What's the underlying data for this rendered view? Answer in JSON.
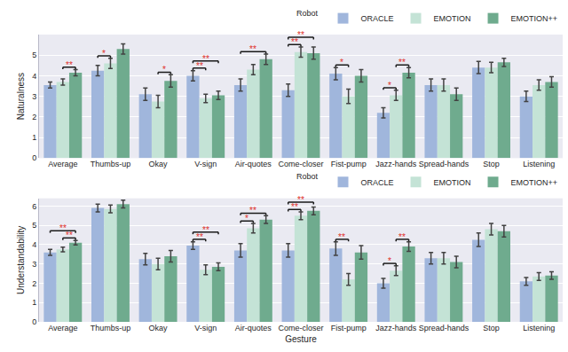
{
  "chart_data": [
    {
      "type": "bar",
      "y_label": "Naturalness",
      "categories": [
        "Average",
        "Thumbs-up",
        "Okay",
        "V-sign",
        "Air-quotes",
        "Come-closer",
        "Fist-pump",
        "Jazz-hands",
        "Spread-hands",
        "Stop",
        "Listening"
      ],
      "series": [
        {
          "name": "ORACLE",
          "color": "#a0b6dc",
          "values": [
            3.55,
            4.25,
            3.1,
            4.0,
            3.55,
            3.3,
            4.1,
            2.2,
            3.55,
            4.4,
            3.0
          ],
          "error": [
            0.15,
            0.25,
            0.3,
            0.25,
            0.3,
            0.3,
            0.3,
            0.25,
            0.3,
            0.3,
            0.25
          ]
        },
        {
          "name": "EMOTION",
          "color": "#c4e3d6",
          "values": [
            3.7,
            4.6,
            2.75,
            2.9,
            4.3,
            5.15,
            3.0,
            3.05,
            3.55,
            4.4,
            3.55
          ],
          "error": [
            0.15,
            0.25,
            0.3,
            0.2,
            0.25,
            0.25,
            0.35,
            0.25,
            0.3,
            0.25,
            0.25
          ]
        },
        {
          "name": "EMOTION++",
          "color": "#6fab8e",
          "values": [
            4.15,
            5.3,
            3.75,
            3.05,
            4.8,
            5.1,
            4.0,
            4.15,
            3.1,
            4.65,
            3.7
          ],
          "error": [
            0.15,
            0.25,
            0.3,
            0.2,
            0.25,
            0.3,
            0.3,
            0.25,
            0.3,
            0.2,
            0.25
          ]
        }
      ],
      "ylim": [
        0,
        6.0
      ],
      "yticks": [
        0,
        1,
        2,
        3,
        4,
        5
      ],
      "grid": true,
      "legend": "top right",
      "legend_title": "Robot",
      "annotations": [
        {
          "category": "Average",
          "from": "EMOTION",
          "to": "EMOTION++",
          "text": "**"
        },
        {
          "category": "Thumbs-up",
          "from": "ORACLE",
          "to": "EMOTION",
          "text": "*"
        },
        {
          "category": "Okay",
          "from": "EMOTION",
          "to": "EMOTION++",
          "text": "*"
        },
        {
          "category": "V-sign",
          "from": "ORACLE",
          "to": "EMOTION",
          "text": "**"
        },
        {
          "category": "V-sign",
          "from": "ORACLE",
          "to": "EMOTION++",
          "text": "**"
        },
        {
          "category": "Air-quotes",
          "from": "ORACLE",
          "to": "EMOTION++",
          "text": "**"
        },
        {
          "category": "Come-closer",
          "from": "ORACLE",
          "to": "EMOTION",
          "text": "**"
        },
        {
          "category": "Come-closer",
          "from": "ORACLE",
          "to": "EMOTION++",
          "text": "**"
        },
        {
          "category": "Fist-pump",
          "from": "ORACLE",
          "to": "EMOTION",
          "text": "*"
        },
        {
          "category": "Jazz-hands",
          "from": "ORACLE",
          "to": "EMOTION",
          "text": "*"
        },
        {
          "category": "Jazz-hands",
          "from": "EMOTION",
          "to": "EMOTION++",
          "text": "**"
        }
      ]
    },
    {
      "type": "bar",
      "y_label": "Understandability",
      "x_label": "Gesture",
      "categories": [
        "Average",
        "Thumbs-up",
        "Okay",
        "V-sign",
        "Air-quotes",
        "Come-closer",
        "Fist-pump",
        "Jazz-hands",
        "Spread-hands",
        "Stop",
        "Listening"
      ],
      "series": [
        {
          "name": "ORACLE",
          "color": "#a0b6dc",
          "values": [
            3.6,
            5.9,
            3.25,
            3.95,
            3.7,
            3.7,
            3.8,
            2.0,
            3.3,
            4.25,
            2.1
          ],
          "error": [
            0.15,
            0.2,
            0.3,
            0.2,
            0.35,
            0.35,
            0.35,
            0.25,
            0.3,
            0.35,
            0.2
          ]
        },
        {
          "name": "EMOTION",
          "color": "#c4e3d6",
          "values": [
            3.75,
            5.85,
            3.0,
            2.7,
            4.85,
            5.5,
            2.2,
            2.65,
            3.3,
            4.8,
            2.35
          ],
          "error": [
            0.12,
            0.2,
            0.3,
            0.25,
            0.25,
            0.2,
            0.3,
            0.25,
            0.3,
            0.3,
            0.2
          ]
        },
        {
          "name": "EMOTION++",
          "color": "#6fab8e",
          "values": [
            4.1,
            6.1,
            3.4,
            2.85,
            5.3,
            5.75,
            3.6,
            3.9,
            3.1,
            4.7,
            2.4
          ],
          "error": [
            0.12,
            0.2,
            0.3,
            0.2,
            0.2,
            0.2,
            0.35,
            0.25,
            0.3,
            0.3,
            0.2
          ]
        }
      ],
      "ylim": [
        0,
        6.4
      ],
      "yticks": [
        0,
        1,
        2,
        3,
        4,
        5,
        6
      ],
      "grid": true,
      "legend": "top right",
      "legend_title": "Robot",
      "annotations": [
        {
          "category": "Average",
          "from": "EMOTION",
          "to": "EMOTION++",
          "text": "**"
        },
        {
          "category": "Average",
          "from": "ORACLE",
          "to": "EMOTION++",
          "text": "**"
        },
        {
          "category": "V-sign",
          "from": "ORACLE",
          "to": "EMOTION",
          "text": "**"
        },
        {
          "category": "V-sign",
          "from": "ORACLE",
          "to": "EMOTION++",
          "text": "**"
        },
        {
          "category": "Air-quotes",
          "from": "ORACLE",
          "to": "EMOTION",
          "text": "*"
        },
        {
          "category": "Air-quotes",
          "from": "ORACLE",
          "to": "EMOTION++",
          "text": "**"
        },
        {
          "category": "Come-closer",
          "from": "ORACLE",
          "to": "EMOTION",
          "text": "**"
        },
        {
          "category": "Come-closer",
          "from": "ORACLE",
          "to": "EMOTION++",
          "text": "**"
        },
        {
          "category": "Fist-pump",
          "from": "ORACLE",
          "to": "EMOTION",
          "text": "**"
        },
        {
          "category": "Jazz-hands",
          "from": "ORACLE",
          "to": "EMOTION",
          "text": "*"
        },
        {
          "category": "Jazz-hands",
          "from": "EMOTION",
          "to": "EMOTION++",
          "text": "**"
        }
      ]
    }
  ]
}
